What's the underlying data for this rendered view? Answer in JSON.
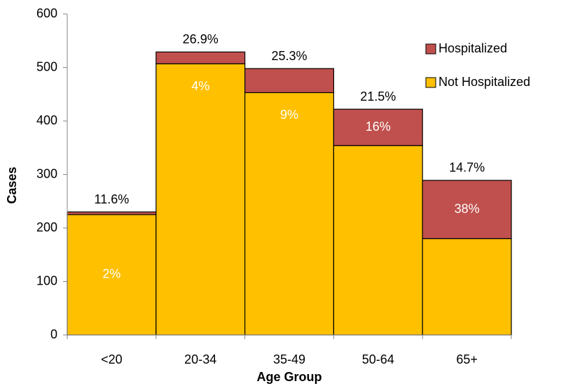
{
  "chart_data": {
    "type": "stacked_bar",
    "x_label": "Age Group",
    "y_label": "Cases",
    "categories": [
      "<20",
      "20-34",
      "35-49",
      "50-64",
      "65+"
    ],
    "series": [
      {
        "name": "Not Hospitalized",
        "color": "#FFC000",
        "values": [
          225,
          507,
          453,
          354,
          180
        ]
      },
      {
        "name": "Hospitalized",
        "color": "#C0504D",
        "values": [
          5,
          22,
          45,
          68,
          109
        ]
      }
    ],
    "hospitalized_pct_labels": [
      "2%",
      "4%",
      "9%",
      "16%",
      "38%"
    ],
    "share_labels": [
      "11.6%",
      "26.9%",
      "25.3%",
      "21.5%",
      "14.7%"
    ],
    "ylim": [
      0,
      600
    ],
    "yticks": [
      0,
      100,
      200,
      300,
      400,
      500,
      600
    ],
    "legend": "right"
  }
}
